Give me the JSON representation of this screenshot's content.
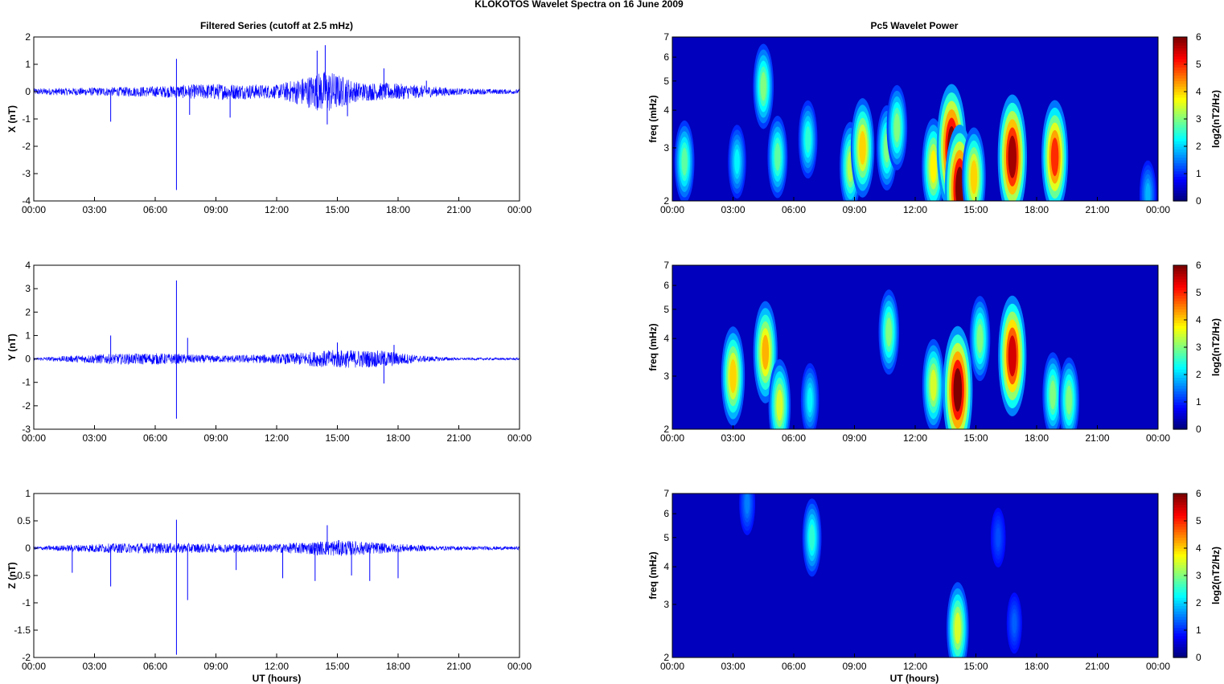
{
  "figure": {
    "suptitle": "KLOKOTOS Wavelet Spectra on 16 June      2009",
    "left_title": "Filtered Series (cutoff at 2.5 mHz)",
    "right_title": "Pc5 Wavelet Power",
    "xlabel": "UT (hours)"
  },
  "colors": {
    "trace": "#0000ff",
    "background": "#00008f",
    "axis": "#000000"
  },
  "chart_data": [
    {
      "type": "line",
      "ylabel": "X (nT)",
      "ylim": [
        -4,
        2
      ],
      "yticks": [
        "2",
        "1",
        "0",
        "-1",
        "-2",
        "-3",
        "-4"
      ],
      "xticks": [
        "00:00",
        "03:00",
        "06:00",
        "09:00",
        "12:00",
        "15:00",
        "18:00",
        "21:00",
        "00:00"
      ],
      "xlim_hours": [
        0,
        24
      ],
      "baseline": 0,
      "envelope": [
        [
          0,
          0.12
        ],
        [
          3,
          0.15
        ],
        [
          6,
          0.2
        ],
        [
          9,
          0.3
        ],
        [
          12,
          0.25
        ],
        [
          14.5,
          0.8
        ],
        [
          16,
          0.35
        ],
        [
          18,
          0.3
        ],
        [
          21,
          0.12
        ],
        [
          24,
          0.08
        ]
      ],
      "spikes": [
        {
          "x": 7.05,
          "y": -3.6
        },
        {
          "x": 7.05,
          "y": 1.2
        },
        {
          "x": 14.4,
          "y": 1.7
        },
        {
          "x": 14.5,
          "y": -1.2
        },
        {
          "x": 14.0,
          "y": 1.5
        },
        {
          "x": 17.3,
          "y": 0.85
        },
        {
          "x": 3.8,
          "y": -1.1
        },
        {
          "x": 7.7,
          "y": -0.85
        },
        {
          "x": 9.7,
          "y": -0.95
        },
        {
          "x": 15.5,
          "y": -0.9
        },
        {
          "x": 19.4,
          "y": 0.4
        }
      ]
    },
    {
      "type": "line",
      "ylabel": "Y (nT)",
      "ylim": [
        -3,
        4
      ],
      "yticks": [
        "4",
        "3",
        "2",
        "1",
        "0",
        "-1",
        "-2",
        "-3"
      ],
      "xticks": [
        "00:00",
        "03:00",
        "06:00",
        "09:00",
        "12:00",
        "15:00",
        "18:00",
        "21:00",
        "00:00"
      ],
      "xlim_hours": [
        0,
        24
      ],
      "baseline": 0,
      "envelope": [
        [
          0,
          0.05
        ],
        [
          3,
          0.2
        ],
        [
          6,
          0.25
        ],
        [
          9,
          0.15
        ],
        [
          12,
          0.2
        ],
        [
          15,
          0.4
        ],
        [
          17.5,
          0.35
        ],
        [
          19,
          0.15
        ],
        [
          21,
          0.05
        ],
        [
          24,
          0.05
        ]
      ],
      "spikes": [
        {
          "x": 7.05,
          "y": 3.35
        },
        {
          "x": 7.05,
          "y": -2.55
        },
        {
          "x": 7.6,
          "y": 0.9
        },
        {
          "x": 17.3,
          "y": -1.05
        },
        {
          "x": 3.8,
          "y": 1.0
        },
        {
          "x": 15.0,
          "y": 0.7
        },
        {
          "x": 17.8,
          "y": 0.6
        }
      ]
    },
    {
      "type": "line",
      "ylabel": "Z (nT)",
      "ylim": [
        -2,
        1
      ],
      "yticks": [
        "1",
        "0.5",
        "0",
        "-0.5",
        "-1",
        "-1.5",
        "-2"
      ],
      "xticks": [
        "00:00",
        "03:00",
        "06:00",
        "09:00",
        "12:00",
        "15:00",
        "18:00",
        "21:00",
        "00:00"
      ],
      "xlim_hours": [
        0,
        24
      ],
      "baseline": 0,
      "envelope": [
        [
          0,
          0.03
        ],
        [
          3,
          0.08
        ],
        [
          6,
          0.1
        ],
        [
          9,
          0.08
        ],
        [
          12,
          0.08
        ],
        [
          15,
          0.15
        ],
        [
          18,
          0.08
        ],
        [
          20,
          0.04
        ],
        [
          24,
          0.03
        ]
      ],
      "spikes": [
        {
          "x": 7.05,
          "y": -1.95
        },
        {
          "x": 7.05,
          "y": 0.52
        },
        {
          "x": 7.6,
          "y": -0.95
        },
        {
          "x": 14.5,
          "y": 0.42
        },
        {
          "x": 3.8,
          "y": -0.7
        },
        {
          "x": 1.9,
          "y": -0.45
        },
        {
          "x": 13.9,
          "y": -0.6
        },
        {
          "x": 15.7,
          "y": -0.5
        },
        {
          "x": 16.6,
          "y": -0.6
        },
        {
          "x": 18.0,
          "y": -0.55
        },
        {
          "x": 12.3,
          "y": -0.55
        },
        {
          "x": 10.0,
          "y": -0.4
        }
      ]
    },
    {
      "type": "heatmap",
      "ylabel": "freq (mHz)",
      "yscale": "log",
      "ylim": [
        2,
        7
      ],
      "yticks": [
        "7",
        "6",
        "5",
        "4",
        "3",
        "2"
      ],
      "xticks": [
        "00:00",
        "03:00",
        "06:00",
        "09:00",
        "12:00",
        "15:00",
        "18:00",
        "21:00",
        "00:00"
      ],
      "xlim_hours": [
        0,
        24
      ],
      "colorbar": {
        "label": "log2(nT2/Hz)",
        "range": [
          0,
          6
        ],
        "ticks": [
          "6",
          "5",
          "4",
          "3",
          "2",
          "1",
          "0"
        ]
      },
      "blobs": [
        {
          "t": 0.6,
          "f": 2.7,
          "p": 2.8
        },
        {
          "t": 3.2,
          "f": 2.7,
          "p": 2.2
        },
        {
          "t": 4.5,
          "f": 4.8,
          "p": 3.0
        },
        {
          "t": 5.2,
          "f": 2.8,
          "p": 2.8
        },
        {
          "t": 6.7,
          "f": 3.2,
          "p": 2.5
        },
        {
          "t": 8.8,
          "f": 2.6,
          "p": 3.3
        },
        {
          "t": 9.4,
          "f": 3.0,
          "p": 4.0
        },
        {
          "t": 10.6,
          "f": 3.0,
          "p": 3.0
        },
        {
          "t": 11.1,
          "f": 3.5,
          "p": 3.0
        },
        {
          "t": 12.9,
          "f": 2.6,
          "p": 3.8
        },
        {
          "t": 13.8,
          "f": 3.0,
          "p": 6.0
        },
        {
          "t": 14.2,
          "f": 2.2,
          "p": 6.0
        },
        {
          "t": 14.9,
          "f": 2.4,
          "p": 4.0
        },
        {
          "t": 16.8,
          "f": 2.8,
          "p": 5.8
        },
        {
          "t": 18.9,
          "f": 2.8,
          "p": 5.0
        },
        {
          "t": 23.5,
          "f": 2.1,
          "p": 1.8
        }
      ]
    },
    {
      "type": "heatmap",
      "ylabel": "freq (mHz)",
      "yscale": "log",
      "ylim": [
        2,
        7
      ],
      "yticks": [
        "7",
        "6",
        "5",
        "4",
        "3",
        "2"
      ],
      "xticks": [
        "00:00",
        "03:00",
        "06:00",
        "09:00",
        "12:00",
        "15:00",
        "18:00",
        "21:00",
        "00:00"
      ],
      "xlim_hours": [
        0,
        24
      ],
      "colorbar": {
        "label": "log2(nT2/Hz)",
        "range": [
          0,
          6
        ],
        "ticks": [
          "6",
          "5",
          "4",
          "3",
          "2",
          "1",
          "0"
        ]
      },
      "blobs": [
        {
          "t": 3.0,
          "f": 3.0,
          "p": 4.0
        },
        {
          "t": 4.6,
          "f": 3.6,
          "p": 4.2
        },
        {
          "t": 5.3,
          "f": 2.4,
          "p": 3.5
        },
        {
          "t": 6.8,
          "f": 2.5,
          "p": 2.2
        },
        {
          "t": 10.7,
          "f": 4.2,
          "p": 3.0
        },
        {
          "t": 12.9,
          "f": 2.8,
          "p": 3.5
        },
        {
          "t": 14.1,
          "f": 2.7,
          "p": 6.0
        },
        {
          "t": 15.2,
          "f": 4.0,
          "p": 3.0
        },
        {
          "t": 16.8,
          "f": 3.5,
          "p": 5.5
        },
        {
          "t": 18.8,
          "f": 2.6,
          "p": 3.0
        },
        {
          "t": 19.6,
          "f": 2.5,
          "p": 3.0
        }
      ]
    },
    {
      "type": "heatmap",
      "ylabel": "freq (mHz)",
      "yscale": "log",
      "ylim": [
        2,
        7
      ],
      "yticks": [
        "7",
        "6",
        "5",
        "4",
        "3",
        "2"
      ],
      "xticks": [
        "00:00",
        "03:00",
        "06:00",
        "09:00",
        "12:00",
        "15:00",
        "18:00",
        "21:00",
        "00:00"
      ],
      "xlim_hours": [
        0,
        24
      ],
      "colorbar": {
        "label": "log2(nT2/Hz)",
        "range": [
          0,
          6
        ],
        "ticks": [
          "6",
          "5",
          "4",
          "3",
          "2",
          "1",
          "0"
        ]
      },
      "blobs": [
        {
          "t": 3.7,
          "f": 6.5,
          "p": 1.5
        },
        {
          "t": 6.9,
          "f": 5.0,
          "p": 2.5
        },
        {
          "t": 14.1,
          "f": 2.5,
          "p": 3.5
        },
        {
          "t": 16.1,
          "f": 5.0,
          "p": 1.2
        },
        {
          "t": 16.9,
          "f": 2.6,
          "p": 1.3
        }
      ]
    }
  ]
}
